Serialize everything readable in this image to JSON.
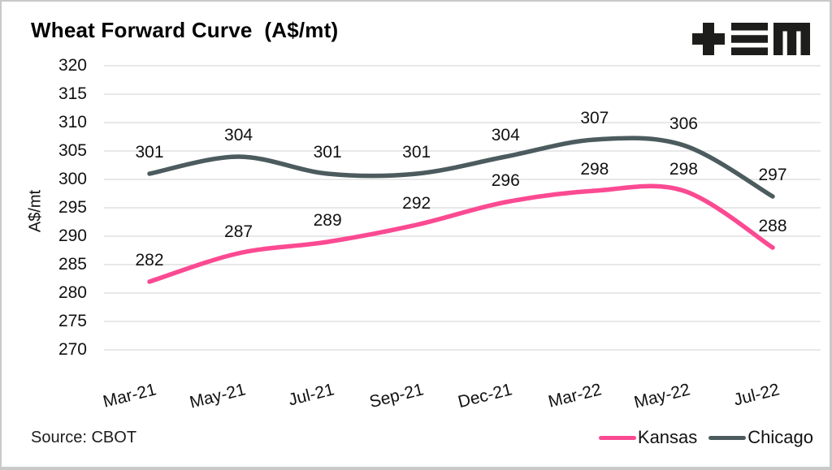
{
  "title": "Wheat Forward Curve  (A$/mt)",
  "source": "Source: CBOT",
  "logo": {
    "name": "tem-logo",
    "color": "#1d1d1b"
  },
  "colors": {
    "kansas": "#fb4a92",
    "chicago": "#4c5b5e",
    "grid": "#d9d9d9",
    "text": "#111111"
  },
  "chart_data": {
    "type": "line",
    "title": "Wheat Forward Curve (A$/mt)",
    "categories": [
      "Mar-21",
      "May-21",
      "Jul-21",
      "Sep-21",
      "Dec-21",
      "Mar-22",
      "May-22",
      "Jul-22"
    ],
    "series": [
      {
        "name": "Kansas",
        "color": "#fb4a92",
        "values": [
          282,
          287,
          289,
          292,
          296,
          298,
          298,
          288
        ]
      },
      {
        "name": "Chicago",
        "color": "#4c5b5e",
        "values": [
          301,
          304,
          301,
          301,
          304,
          307,
          306,
          297
        ]
      }
    ],
    "ylabel": "A$/mt",
    "xlabel": "",
    "ylim": [
      270,
      320
    ],
    "ytick_step": 5,
    "grid": true,
    "data_labels": true,
    "legend_position": "bottom-right"
  }
}
